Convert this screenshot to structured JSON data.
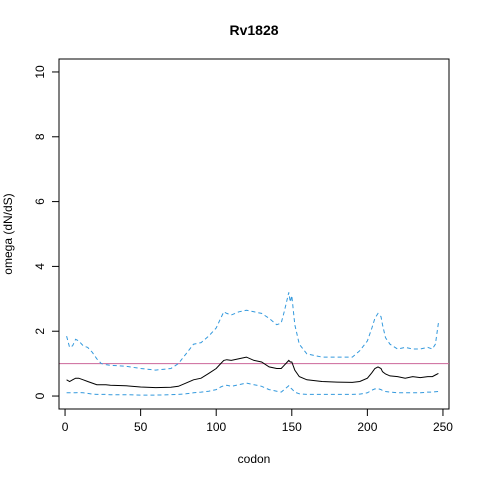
{
  "chart_data": {
    "type": "line",
    "title": "Rv1828",
    "xlabel": "codon",
    "ylabel": "omega (dN/dS)",
    "xlim": [
      -4,
      254
    ],
    "ylim": [
      -0.4,
      10.4
    ],
    "xticks": [
      0,
      50,
      100,
      150,
      200,
      250
    ],
    "yticks": [
      0,
      2,
      4,
      6,
      8,
      10
    ],
    "grid": false,
    "reference_line": {
      "y": 1,
      "color": "#cc6699"
    },
    "colors": {
      "mean": "#000000",
      "bounds": "#3399dd"
    },
    "series": [
      {
        "role": "upper-bound",
        "style": "dashed",
        "x": [
          1,
          3,
          5,
          7,
          9,
          12,
          15,
          18,
          21,
          24,
          27,
          30,
          40,
          50,
          60,
          70,
          75,
          80,
          85,
          90,
          95,
          100,
          103,
          105,
          107,
          110,
          115,
          120,
          125,
          130,
          135,
          140,
          143,
          145,
          147,
          148,
          149,
          150,
          152,
          155,
          160,
          170,
          180,
          190,
          195,
          200,
          203,
          205,
          207,
          209,
          210,
          212,
          215,
          220,
          225,
          230,
          235,
          240,
          243,
          245,
          247
        ],
        "y": [
          1.85,
          1.5,
          1.55,
          1.75,
          1.7,
          1.55,
          1.5,
          1.35,
          1.15,
          1.0,
          0.97,
          0.95,
          0.92,
          0.85,
          0.8,
          0.85,
          1.0,
          1.3,
          1.6,
          1.65,
          1.85,
          2.1,
          2.4,
          2.6,
          2.55,
          2.5,
          2.6,
          2.65,
          2.6,
          2.55,
          2.4,
          2.2,
          2.25,
          2.6,
          3.0,
          3.2,
          2.9,
          3.1,
          2.2,
          1.6,
          1.3,
          1.2,
          1.2,
          1.2,
          1.4,
          1.7,
          2.1,
          2.4,
          2.55,
          2.45,
          2.2,
          1.8,
          1.6,
          1.45,
          1.5,
          1.45,
          1.45,
          1.5,
          1.45,
          1.6,
          2.25
        ]
      },
      {
        "role": "mean",
        "style": "solid",
        "x": [
          1,
          3,
          5,
          7,
          9,
          12,
          15,
          18,
          21,
          24,
          27,
          30,
          40,
          50,
          60,
          70,
          75,
          80,
          85,
          90,
          95,
          100,
          103,
          105,
          107,
          110,
          115,
          120,
          125,
          130,
          135,
          140,
          143,
          145,
          147,
          148,
          149,
          150,
          152,
          155,
          160,
          170,
          180,
          190,
          195,
          200,
          203,
          205,
          207,
          209,
          210,
          212,
          215,
          220,
          225,
          230,
          235,
          240,
          243,
          245,
          247
        ],
        "y": [
          0.5,
          0.45,
          0.5,
          0.55,
          0.55,
          0.5,
          0.45,
          0.4,
          0.35,
          0.35,
          0.35,
          0.33,
          0.32,
          0.28,
          0.26,
          0.27,
          0.3,
          0.4,
          0.5,
          0.55,
          0.7,
          0.85,
          1.0,
          1.1,
          1.12,
          1.1,
          1.15,
          1.2,
          1.1,
          1.05,
          0.9,
          0.85,
          0.85,
          0.95,
          1.05,
          1.1,
          1.05,
          1.05,
          0.8,
          0.6,
          0.5,
          0.45,
          0.43,
          0.42,
          0.45,
          0.55,
          0.72,
          0.85,
          0.9,
          0.85,
          0.75,
          0.68,
          0.62,
          0.6,
          0.55,
          0.6,
          0.57,
          0.6,
          0.6,
          0.65,
          0.7
        ]
      },
      {
        "role": "lower-bound",
        "style": "dashed",
        "x": [
          1,
          3,
          5,
          7,
          9,
          12,
          15,
          18,
          21,
          24,
          27,
          30,
          40,
          50,
          60,
          70,
          75,
          80,
          85,
          90,
          95,
          100,
          103,
          105,
          107,
          110,
          115,
          120,
          125,
          130,
          135,
          140,
          143,
          145,
          147,
          148,
          149,
          150,
          152,
          155,
          160,
          170,
          180,
          190,
          195,
          200,
          203,
          205,
          207,
          209,
          210,
          212,
          215,
          220,
          225,
          230,
          235,
          240,
          243,
          245,
          247
        ],
        "y": [
          0.1,
          0.1,
          0.1,
          0.1,
          0.11,
          0.1,
          0.08,
          0.06,
          0.05,
          0.05,
          0.05,
          0.04,
          0.04,
          0.03,
          0.03,
          0.04,
          0.05,
          0.07,
          0.1,
          0.12,
          0.15,
          0.2,
          0.28,
          0.32,
          0.33,
          0.3,
          0.35,
          0.4,
          0.35,
          0.3,
          0.2,
          0.15,
          0.12,
          0.2,
          0.28,
          0.32,
          0.25,
          0.22,
          0.12,
          0.07,
          0.05,
          0.05,
          0.05,
          0.05,
          0.06,
          0.1,
          0.18,
          0.22,
          0.23,
          0.2,
          0.17,
          0.14,
          0.12,
          0.1,
          0.1,
          0.1,
          0.1,
          0.12,
          0.12,
          0.13,
          0.14
        ]
      }
    ]
  }
}
